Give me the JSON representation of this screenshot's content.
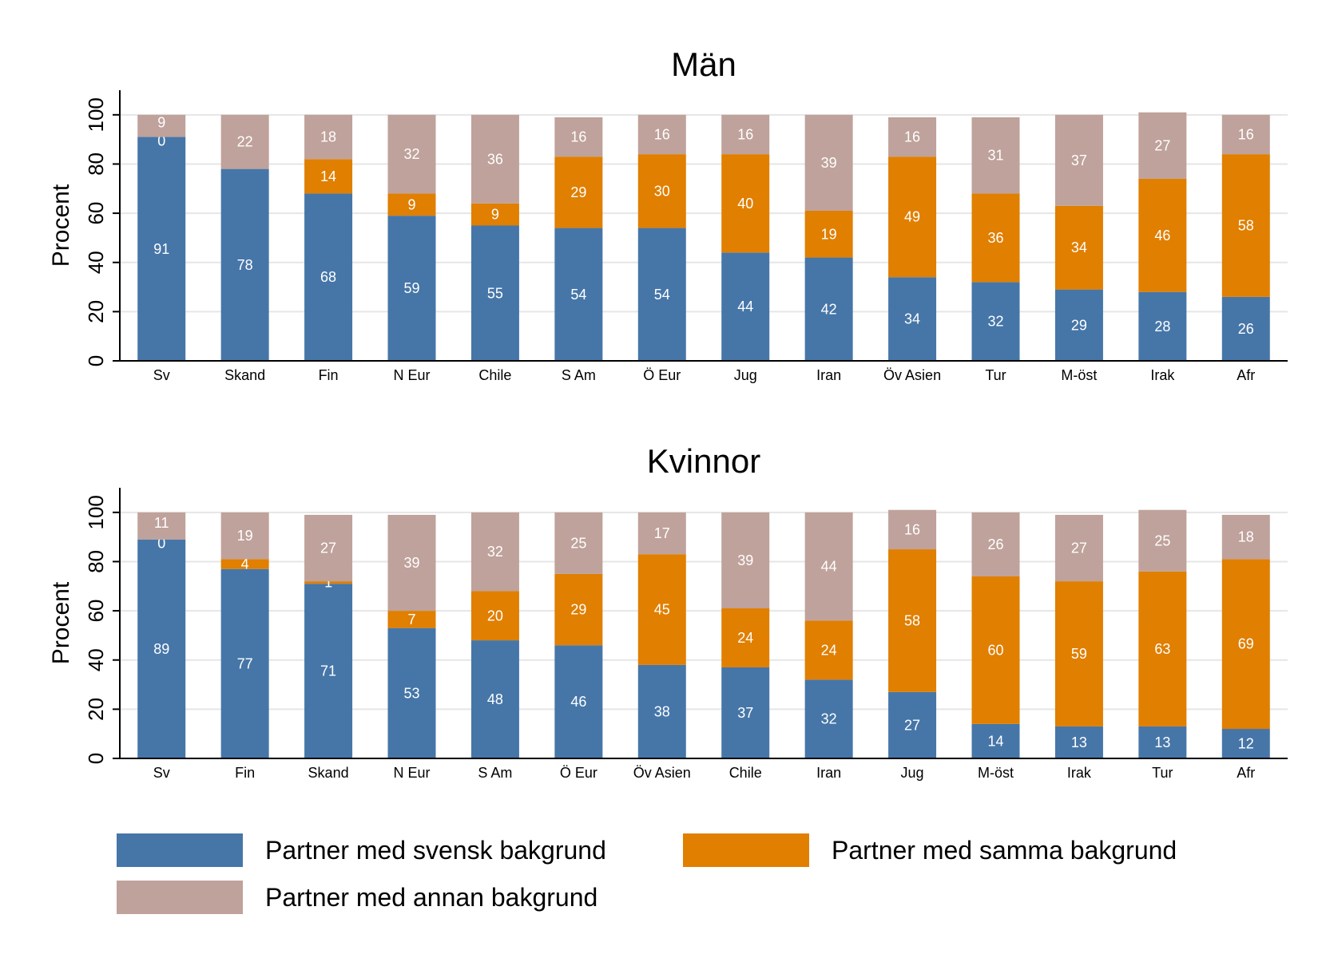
{
  "chart_data": [
    {
      "type": "bar",
      "stacked": true,
      "title": "Män",
      "ylabel": "Procent",
      "ylim": [
        0,
        110
      ],
      "yticks": [
        0,
        20,
        40,
        60,
        80,
        100
      ],
      "grid": true,
      "categories": [
        "Sv",
        "Skand",
        "Fin",
        "N Eur",
        "Chile",
        "S Am",
        "Ö Eur",
        "Jug",
        "Iran",
        "Öv Asien",
        "Tur",
        "M-öst",
        "Irak",
        "Afr"
      ],
      "series": [
        {
          "name": "Partner med svensk bakgrund",
          "color": "#4676a8",
          "values": [
            91,
            78,
            68,
            59,
            55,
            54,
            54,
            44,
            42,
            34,
            32,
            29,
            28,
            26
          ]
        },
        {
          "name": "Partner med samma bakgrund",
          "color": "#e07f00",
          "values": [
            0,
            0,
            14,
            9,
            9,
            29,
            30,
            40,
            19,
            49,
            36,
            34,
            46,
            58
          ]
        },
        {
          "name": "Partner med annan bakgrund",
          "color": "#bfa29b",
          "values": [
            9,
            22,
            18,
            32,
            36,
            16,
            16,
            16,
            39,
            16,
            31,
            37,
            27,
            16
          ]
        }
      ]
    },
    {
      "type": "bar",
      "stacked": true,
      "title": "Kvinnor",
      "ylabel": "Procent",
      "ylim": [
        0,
        110
      ],
      "yticks": [
        0,
        20,
        40,
        60,
        80,
        100
      ],
      "grid": true,
      "categories": [
        "Sv",
        "Fin",
        "Skand",
        "N Eur",
        "S Am",
        "Ö Eur",
        "Öv Asien",
        "Chile",
        "Iran",
        "Jug",
        "M-öst",
        "Irak",
        "Tur",
        "Afr"
      ],
      "series": [
        {
          "name": "Partner med svensk bakgrund",
          "color": "#4676a8",
          "values": [
            89,
            77,
            71,
            53,
            48,
            46,
            38,
            37,
            32,
            27,
            14,
            13,
            13,
            12
          ]
        },
        {
          "name": "Partner med samma bakgrund",
          "color": "#e07f00",
          "values": [
            0,
            4,
            1,
            7,
            20,
            29,
            45,
            24,
            24,
            58,
            60,
            59,
            63,
            69
          ]
        },
        {
          "name": "Partner med annan bakgrund",
          "color": "#bfa29b",
          "values": [
            11,
            19,
            27,
            39,
            32,
            25,
            17,
            39,
            44,
            16,
            26,
            27,
            25,
            18
          ]
        }
      ]
    }
  ],
  "legend": {
    "placement": "bottom",
    "items": [
      {
        "label": "Partner med svensk bakgrund",
        "color": "#4676a8"
      },
      {
        "label": "Partner med samma bakgrund",
        "color": "#e07f00"
      },
      {
        "label": "Partner med annan bakgrund",
        "color": "#bfa29b"
      }
    ]
  }
}
